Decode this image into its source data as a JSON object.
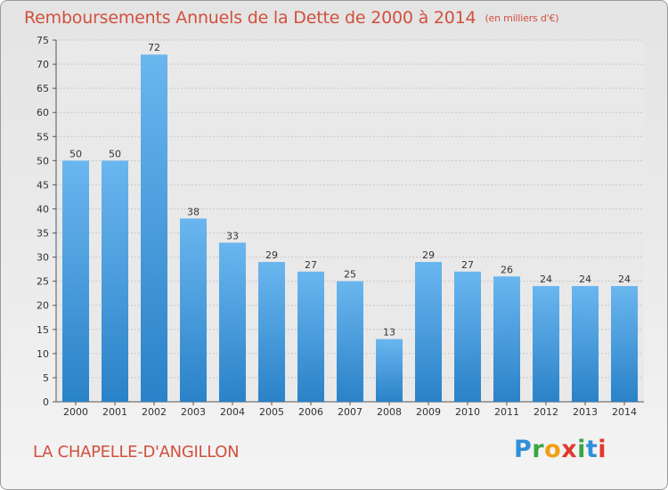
{
  "header": {
    "title": "Remboursements Annuels de la Dette de 2000 à 2014",
    "unit": "(en milliers d'€)"
  },
  "footer": {
    "commune": "LA CHAPELLE-D'ANGILLON",
    "logo_letters": [
      "P",
      "r",
      "o",
      "x",
      "i",
      "t",
      "i"
    ]
  },
  "colors": {
    "title": "#d2503e",
    "bar_light": "#6ab6ef",
    "bar_dark": "#2a82c8",
    "grid": "#c8c8c8",
    "axis": "#555555"
  },
  "chart_data": {
    "type": "bar",
    "title": "Remboursements Annuels de la Dette de 2000 à 2014",
    "xlabel": "",
    "ylabel": "",
    "categories": [
      "2000",
      "2001",
      "2002",
      "2003",
      "2004",
      "2005",
      "2006",
      "2007",
      "2008",
      "2009",
      "2010",
      "2011",
      "2012",
      "2013",
      "2014"
    ],
    "values": [
      50,
      50,
      72,
      38,
      33,
      29,
      27,
      25,
      13,
      29,
      27,
      26,
      24,
      24,
      24
    ],
    "ylim": [
      0,
      75
    ],
    "yticks": [
      0,
      5,
      10,
      15,
      20,
      25,
      30,
      35,
      40,
      45,
      50,
      55,
      60,
      65,
      70,
      75
    ],
    "grid": true,
    "data_labels": true
  }
}
